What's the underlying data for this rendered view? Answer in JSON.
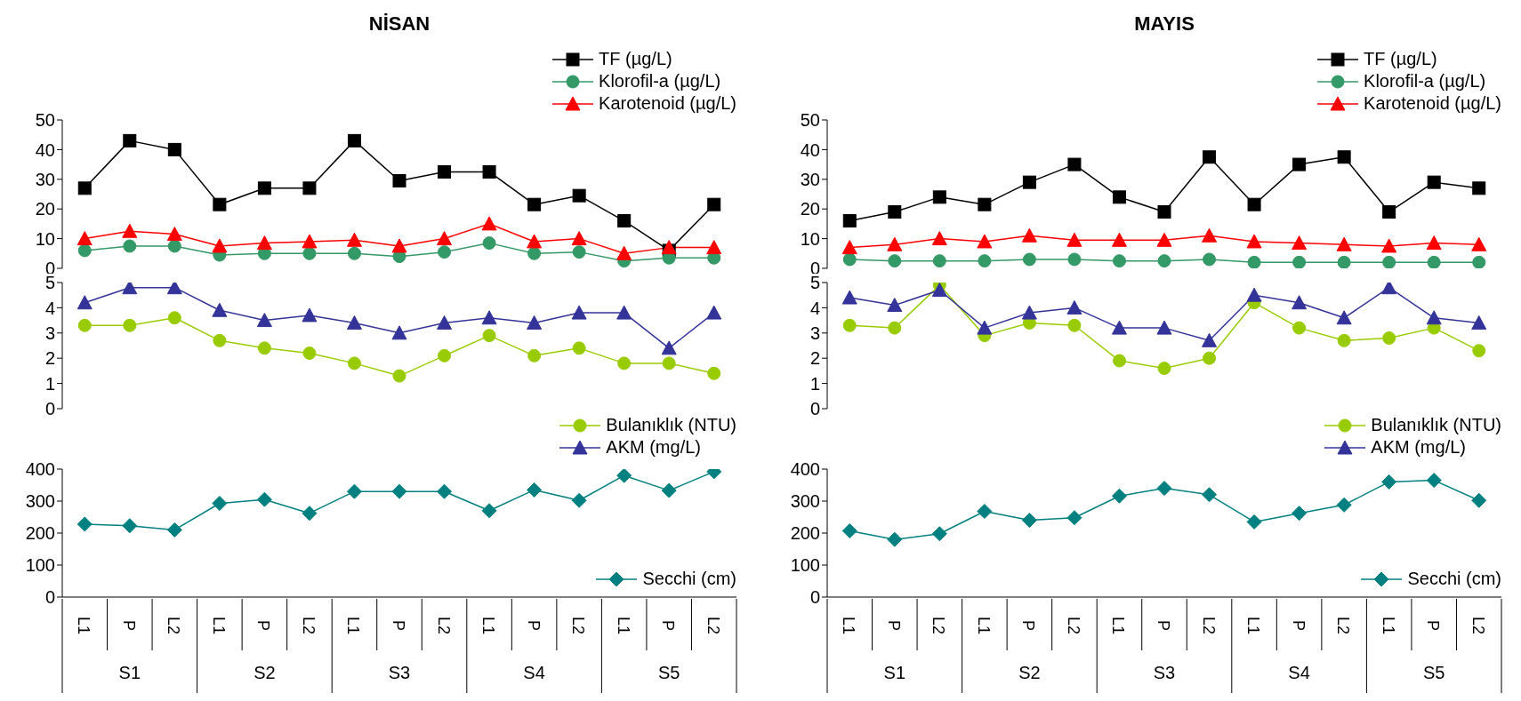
{
  "chart_data": [
    {
      "type": "line",
      "title": "NİSAN",
      "categories": [
        null,
        null,
        null,
        null,
        null,
        null,
        null,
        null,
        null,
        null,
        null,
        null,
        null,
        null,
        null
      ],
      "ylim": [
        0,
        50
      ],
      "yticks": [
        0,
        10,
        20,
        30,
        40,
        50
      ],
      "legend": "top right",
      "tick_labels": "y",
      "series": [
        {
          "name": "TF (µg/L)",
          "color": "#000000",
          "marker": "square",
          "values": [
            27,
            43,
            40,
            21.5,
            27,
            27,
            43,
            29.5,
            32.5,
            32.5,
            21.5,
            24.5,
            16,
            6,
            21.5
          ]
        },
        {
          "name": "Klorofil-a (µg/L)",
          "color": "#339966",
          "marker": "circle",
          "values": [
            6,
            7.5,
            7.5,
            4.5,
            5,
            5,
            5,
            4,
            5.5,
            8.5,
            5,
            5.5,
            2.5,
            3.5,
            3.5
          ]
        },
        {
          "name": "Karotenoid (µg/L)",
          "color": "#ff0000",
          "marker": "triangle",
          "values": [
            10,
            12.5,
            11.5,
            7.5,
            8.5,
            9,
            9.5,
            7.5,
            10,
            15,
            9,
            10,
            5,
            7,
            7
          ]
        }
      ]
    },
    {
      "type": "line",
      "categories": [
        null,
        null,
        null,
        null,
        null,
        null,
        null,
        null,
        null,
        null,
        null,
        null,
        null,
        null,
        null
      ],
      "ylim": [
        0,
        5
      ],
      "yticks": [
        0,
        1,
        2,
        3,
        4,
        5
      ],
      "legend": "bottom right",
      "tick_labels": "y",
      "series": [
        {
          "name": "Bulanıklık (NTU)",
          "color": "#99cc00",
          "marker": "circle",
          "values": [
            3.3,
            3.3,
            3.6,
            2.7,
            2.4,
            2.2,
            1.8,
            1.3,
            2.1,
            2.9,
            2.1,
            2.4,
            1.8,
            1.8,
            1.4
          ]
        },
        {
          "name": "AKM (mg/L)",
          "color": "#333399",
          "marker": "triangle",
          "values": [
            4.2,
            4.8,
            4.8,
            3.9,
            3.5,
            3.7,
            3.4,
            3.0,
            3.4,
            3.6,
            3.4,
            3.8,
            3.8,
            2.4,
            3.8
          ]
        }
      ]
    },
    {
      "type": "line",
      "categories": [
        "L1",
        "P",
        "L2",
        "L1",
        "P",
        "L2",
        "L1",
        "P",
        "L2",
        "L1",
        "P",
        "L2",
        "L1",
        "P",
        "L2"
      ],
      "ylim": [
        0,
        400
      ],
      "yticks": [
        0,
        100,
        200,
        300,
        400
      ],
      "legend": "bottom right",
      "annotations": [
        "S1",
        "S2",
        "S3",
        "S4",
        "S5"
      ],
      "series": [
        {
          "name": "Secchi (cm)",
          "color": "#008080",
          "marker": "diamond",
          "values": [
            228,
            223,
            210,
            293,
            305,
            262,
            330,
            330,
            330,
            270,
            335,
            302,
            380,
            333,
            392
          ]
        }
      ]
    },
    {
      "type": "line",
      "title": "MAYIS",
      "categories": [
        null,
        null,
        null,
        null,
        null,
        null,
        null,
        null,
        null,
        null,
        null,
        null,
        null,
        null,
        null
      ],
      "ylim": [
        0,
        50
      ],
      "yticks": [
        0,
        10,
        20,
        30,
        40,
        50
      ],
      "legend": "top right",
      "tick_labels": "y",
      "series": [
        {
          "name": "TF (µg/L)",
          "color": "#000000",
          "marker": "square",
          "values": [
            16,
            19,
            24,
            21.5,
            29,
            35,
            24,
            19,
            37.5,
            21.5,
            35,
            37.5,
            19,
            29,
            27
          ]
        },
        {
          "name": "Klorofil-a (µg/L)",
          "color": "#339966",
          "marker": "circle",
          "values": [
            3,
            2.5,
            2.5,
            2.5,
            3,
            3,
            2.5,
            2.5,
            3,
            2,
            2,
            2,
            2,
            2,
            2
          ]
        },
        {
          "name": "Karotenoid (µg/L)",
          "color": "#ff0000",
          "marker": "triangle",
          "values": [
            7,
            8,
            10,
            9,
            11,
            9.5,
            9.5,
            9.5,
            11,
            9,
            8.5,
            8,
            7.5,
            8.5,
            8
          ]
        }
      ]
    },
    {
      "type": "line",
      "categories": [
        null,
        null,
        null,
        null,
        null,
        null,
        null,
        null,
        null,
        null,
        null,
        null,
        null,
        null,
        null
      ],
      "ylim": [
        0,
        5
      ],
      "yticks": [
        0,
        1,
        2,
        3,
        4,
        5
      ],
      "legend": "bottom right",
      "tick_labels": "y",
      "series": [
        {
          "name": "Bulanıklık (NTU)",
          "color": "#99cc00",
          "marker": "circle",
          "values": [
            3.3,
            3.2,
            4.9,
            2.9,
            3.4,
            3.3,
            1.9,
            1.6,
            2.0,
            4.2,
            3.2,
            2.7,
            2.8,
            3.2,
            2.3
          ]
        },
        {
          "name": "AKM (mg/L)",
          "color": "#333399",
          "marker": "triangle",
          "values": [
            4.4,
            4.1,
            4.7,
            3.2,
            3.8,
            4.0,
            3.2,
            3.2,
            2.7,
            4.5,
            4.2,
            3.6,
            4.8,
            3.6,
            3.4
          ]
        }
      ]
    },
    {
      "type": "line",
      "categories": [
        "L1",
        "P",
        "L2",
        "L1",
        "P",
        "L2",
        "L1",
        "P",
        "L2",
        "L1",
        "P",
        "L2",
        "L1",
        "P",
        "L2"
      ],
      "ylim": [
        0,
        400
      ],
      "yticks": [
        0,
        100,
        200,
        300,
        400
      ],
      "legend": "bottom right",
      "annotations": [
        "S1",
        "S2",
        "S3",
        "S4",
        "S5"
      ],
      "series": [
        {
          "name": "Secchi (cm)",
          "color": "#008080",
          "marker": "diamond",
          "values": [
            207,
            180,
            198,
            268,
            240,
            248,
            316,
            340,
            320,
            235,
            262,
            288,
            360,
            365,
            302
          ]
        }
      ]
    }
  ]
}
